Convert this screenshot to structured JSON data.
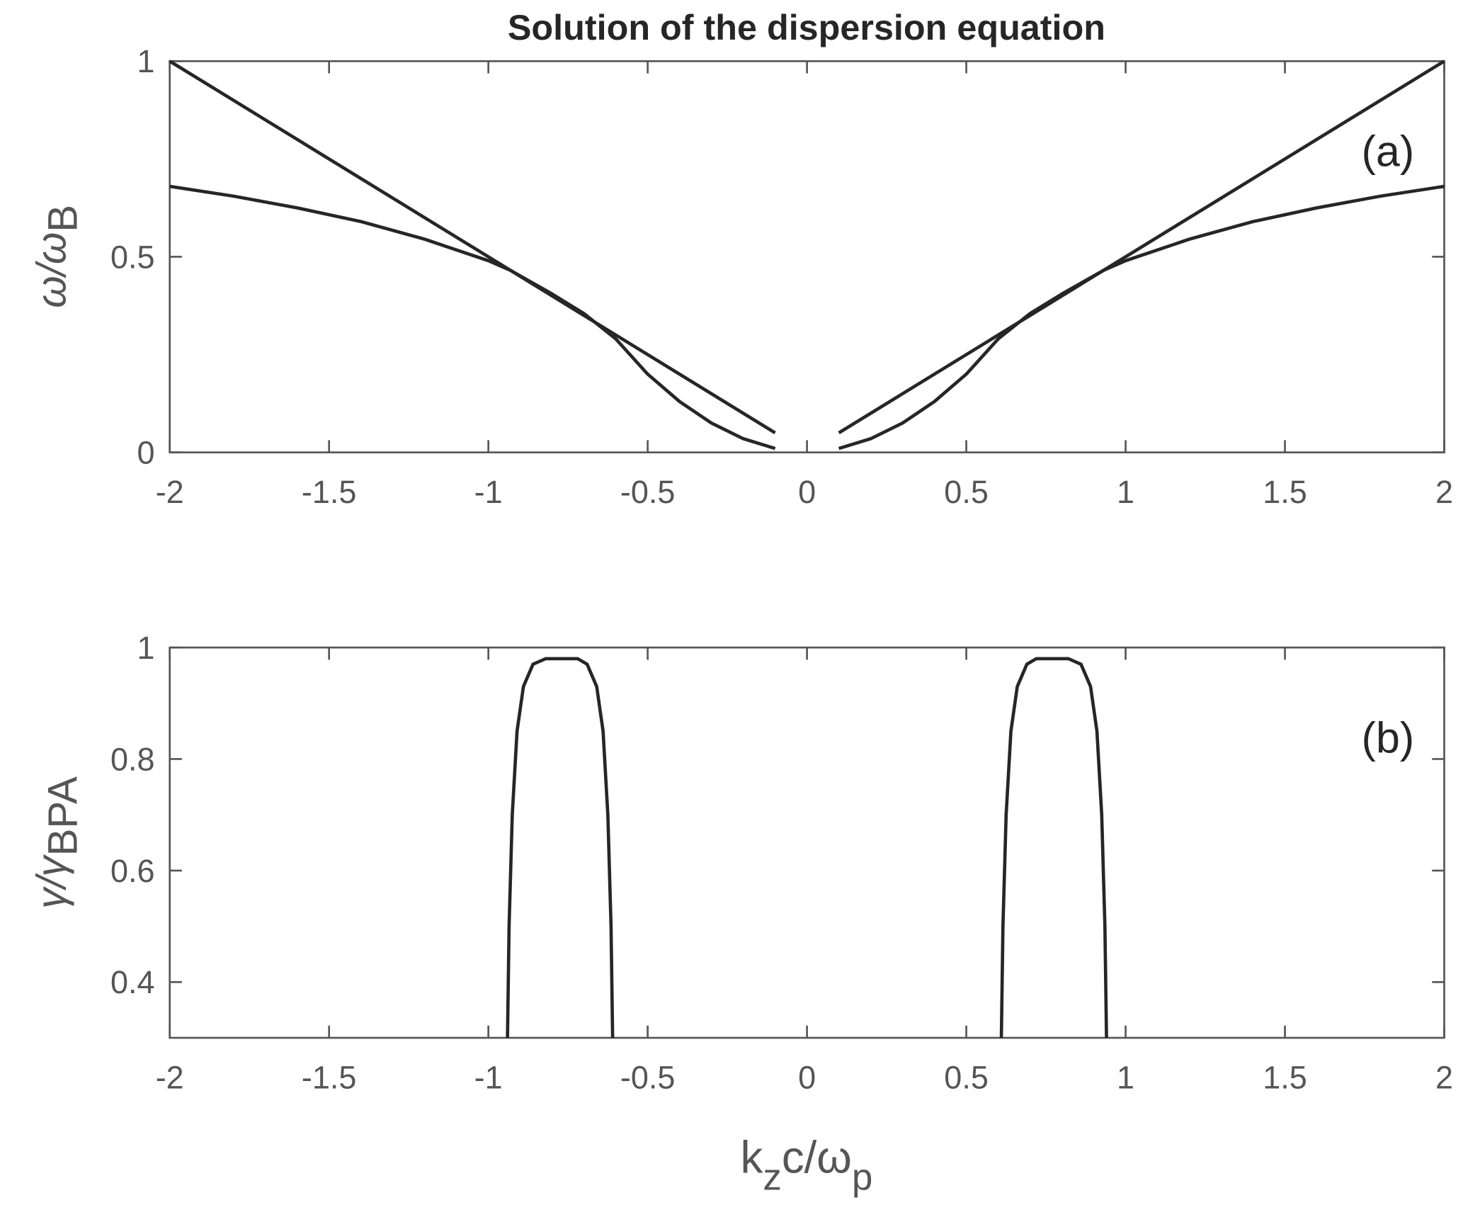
{
  "chart_data": [
    {
      "type": "line",
      "title": "Solution of the dispersion equation",
      "panel_label": "(a)",
      "ylabel": {
        "main": "ω/ω",
        "sub": "B"
      },
      "xlim": [
        -2,
        2
      ],
      "ylim": [
        0,
        1
      ],
      "xticks": [
        "-2",
        "-1.5",
        "-1",
        "-0.5",
        "0",
        "0.5",
        "1",
        "1.5",
        "2"
      ],
      "yticks": [
        "0",
        "0.5",
        "1"
      ],
      "grid": false,
      "line_color": "#262626",
      "series": [
        {
          "x": [
            -2,
            -0.1
          ],
          "y": [
            1,
            0.05
          ]
        },
        {
          "x": [
            0.1,
            2
          ],
          "y": [
            0.05,
            1
          ]
        },
        {
          "x": [
            -2.0,
            -1.8,
            -1.6,
            -1.4,
            -1.2,
            -1.0,
            -0.93,
            -0.8,
            -0.7,
            -0.6,
            -0.5,
            -0.4,
            -0.3,
            -0.2,
            -0.1
          ],
          "y": [
            0.68,
            0.655,
            0.625,
            0.59,
            0.545,
            0.49,
            0.465,
            0.405,
            0.355,
            0.29,
            0.2,
            0.13,
            0.075,
            0.035,
            0.01
          ]
        },
        {
          "x": [
            0.1,
            0.2,
            0.3,
            0.4,
            0.5,
            0.6,
            0.7,
            0.8,
            0.93,
            1.0,
            1.2,
            1.4,
            1.6,
            1.8,
            2.0
          ],
          "y": [
            0.01,
            0.035,
            0.075,
            0.13,
            0.2,
            0.29,
            0.355,
            0.405,
            0.465,
            0.49,
            0.545,
            0.59,
            0.625,
            0.655,
            0.68
          ]
        }
      ]
    },
    {
      "type": "line",
      "panel_label": "(b)",
      "ylabel": {
        "main": "γ/γ",
        "sub": "BPA"
      },
      "xlabel": {
        "k": "k",
        "ksub": "z",
        "rest": "c/ω",
        "sub": "p"
      },
      "xlim": [
        -2,
        2
      ],
      "ylim": [
        0.3,
        1
      ],
      "xticks": [
        "-2",
        "-1.5",
        "-1",
        "-0.5",
        "0",
        "0.5",
        "1",
        "1.5",
        "2"
      ],
      "yticks": [
        "0.4",
        "0.6",
        "0.8",
        "1"
      ],
      "grid": false,
      "line_color": "#262626",
      "series": [
        {
          "x": [
            -0.94,
            -0.935,
            -0.925,
            -0.91,
            -0.89,
            -0.86,
            -0.82,
            -0.72,
            -0.69,
            -0.66,
            -0.64,
            -0.625,
            -0.615,
            -0.61
          ],
          "y": [
            0.3,
            0.5,
            0.7,
            0.85,
            0.93,
            0.97,
            0.98,
            0.98,
            0.97,
            0.93,
            0.85,
            0.7,
            0.5,
            0.3
          ]
        },
        {
          "x": [
            0.61,
            0.615,
            0.625,
            0.64,
            0.66,
            0.69,
            0.72,
            0.82,
            0.86,
            0.89,
            0.91,
            0.925,
            0.935,
            0.94
          ],
          "y": [
            0.3,
            0.5,
            0.7,
            0.85,
            0.93,
            0.97,
            0.98,
            0.98,
            0.97,
            0.93,
            0.85,
            0.7,
            0.5,
            0.3
          ]
        }
      ]
    }
  ]
}
